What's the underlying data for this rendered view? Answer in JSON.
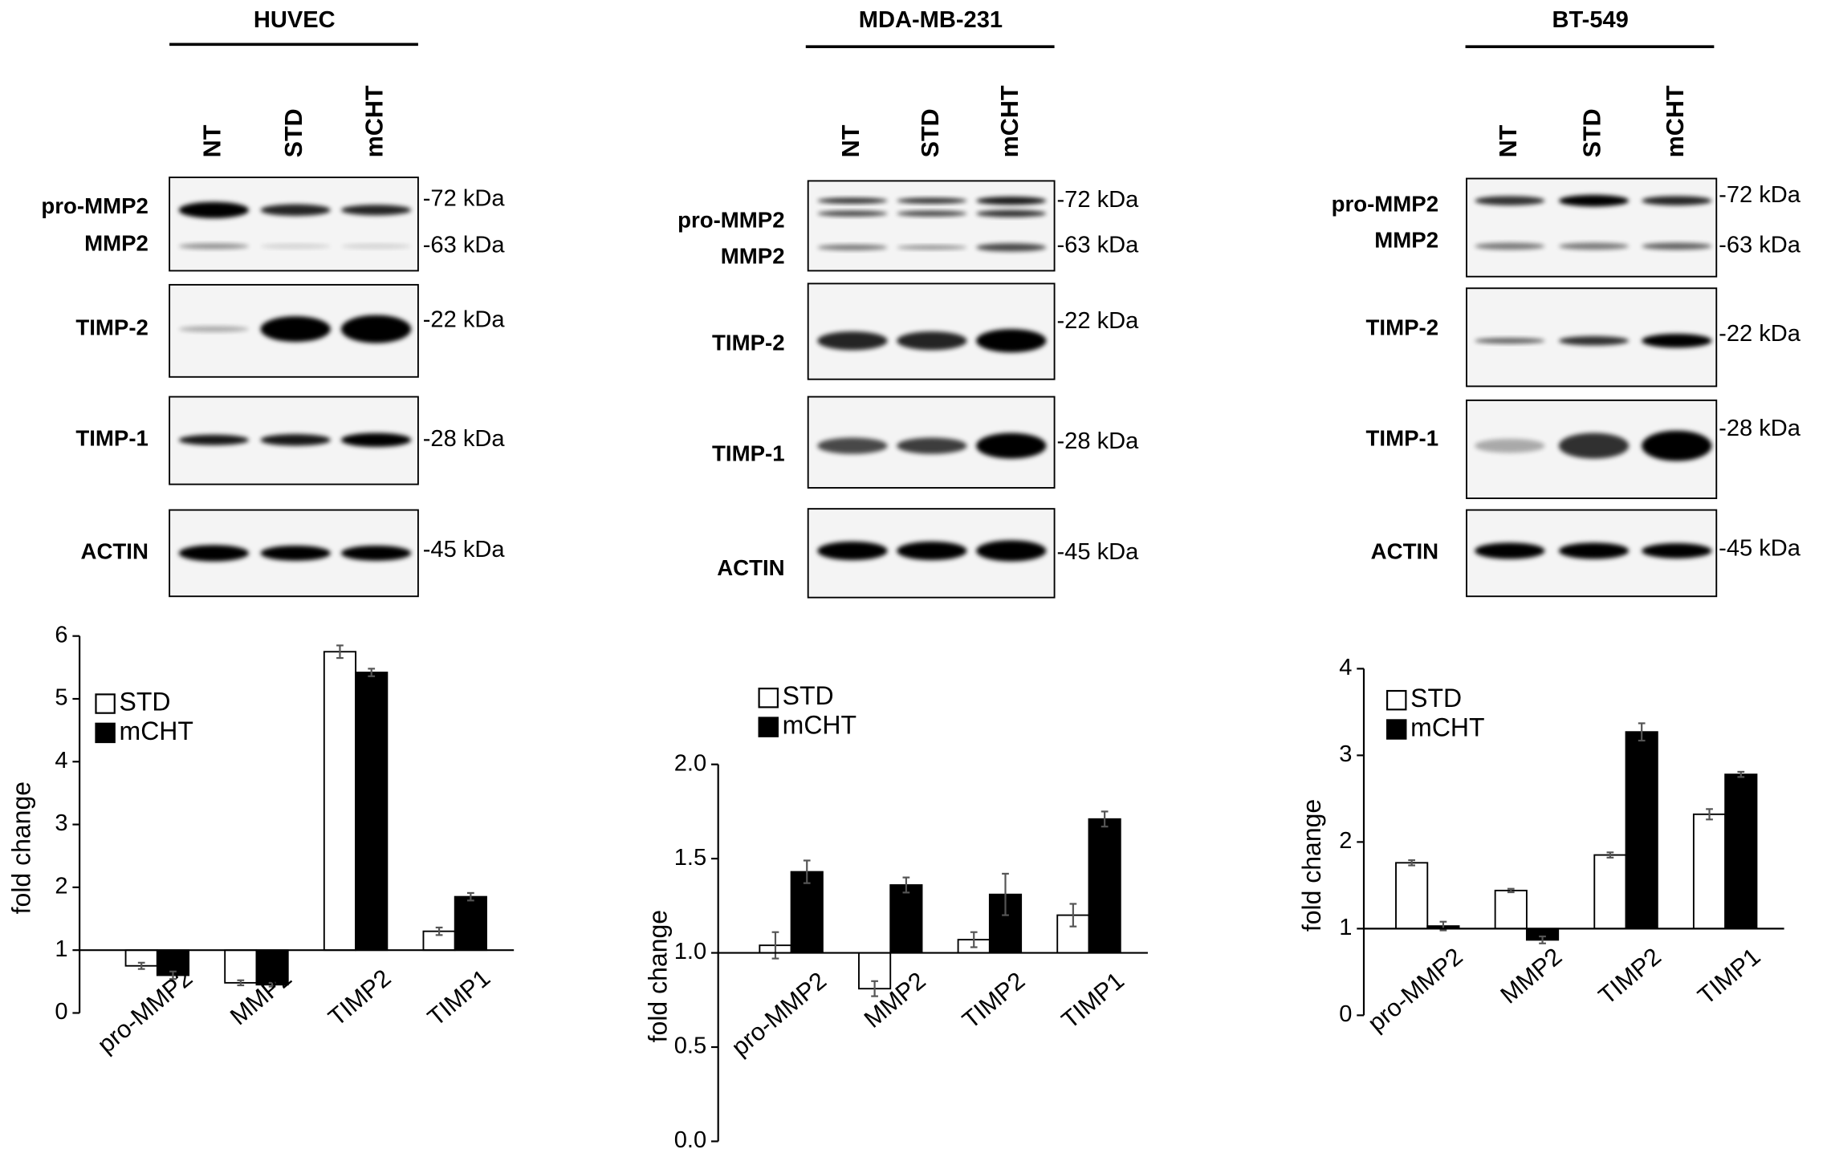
{
  "blots": [
    {
      "title": "HUVEC",
      "lanes": [
        "NT",
        "STD",
        "mCHT"
      ],
      "proteins": [
        "pro-MMP2",
        "MMP2",
        "TIMP-2",
        "TIMP-1",
        "ACTIN"
      ],
      "markers": [
        "-72 kDa",
        "-63 kDa",
        "-22 kDa",
        "-28 kDa",
        "-45 kDa"
      ]
    },
    {
      "title": "MDA-MB-231",
      "lanes": [
        "NT",
        "STD",
        "mCHT"
      ],
      "proteins": [
        "pro-MMP2",
        "MMP2",
        "TIMP-2",
        "TIMP-1",
        "ACTIN"
      ],
      "markers": [
        "-72 kDa",
        "-63 kDa",
        "-22 kDa",
        "-28 kDa",
        "-45 kDa"
      ]
    },
    {
      "title": "BT-549",
      "lanes": [
        "NT",
        "STD",
        "mCHT"
      ],
      "proteins": [
        "pro-MMP2",
        "MMP2",
        "TIMP-2",
        "TIMP-1",
        "ACTIN"
      ],
      "markers": [
        "-72 kDa",
        "-63 kDa",
        "-22 kDa",
        "-28 kDa",
        "-45 kDa"
      ]
    }
  ],
  "chart_data": [
    {
      "type": "bar",
      "y_label": "fold change",
      "categories": [
        "pro-MMP2",
        "MMP2",
        "TIMP2",
        "TIMP1"
      ],
      "series": [
        {
          "name": "STD",
          "color": "#ffffff",
          "values": [
            0.75,
            0.48,
            5.75,
            1.3
          ],
          "errors": [
            0.05,
            0.04,
            0.1,
            0.06
          ]
        },
        {
          "name": "mCHT",
          "color": "#000000",
          "values": [
            0.6,
            0.45,
            5.42,
            1.85
          ],
          "errors": [
            0.06,
            0.03,
            0.06,
            0.06
          ]
        }
      ],
      "ylim": [
        0,
        6
      ],
      "yticks": [
        0,
        1,
        2,
        3,
        4,
        5,
        6
      ],
      "baseline": 1,
      "legend": "upper left"
    },
    {
      "type": "bar",
      "y_label": "fold change",
      "categories": [
        "pro-MMP2",
        "MMP2",
        "TIMP2",
        "TIMP1"
      ],
      "series": [
        {
          "name": "STD",
          "color": "#ffffff",
          "values": [
            1.04,
            0.81,
            1.07,
            1.2
          ],
          "errors": [
            0.07,
            0.04,
            0.04,
            0.06
          ]
        },
        {
          "name": "mCHT",
          "color": "#000000",
          "values": [
            1.43,
            1.36,
            1.31,
            1.71
          ],
          "errors": [
            0.06,
            0.04,
            0.11,
            0.04
          ]
        }
      ],
      "ylim": [
        0,
        2
      ],
      "yticks": [
        {
          "value": 0,
          "label": "0.0"
        },
        0.5,
        {
          "value": 1,
          "label": "1.0"
        },
        1.5,
        {
          "value": 2,
          "label": "2.0"
        }
      ],
      "baseline": 1,
      "legend": "upper left"
    },
    {
      "type": "bar",
      "y_label": "fold change",
      "categories": [
        "pro-MMP2",
        "MMP2",
        "TIMP2",
        "TIMP1"
      ],
      "series": [
        {
          "name": "STD",
          "color": "#ffffff",
          "values": [
            1.76,
            1.44,
            1.85,
            2.32
          ],
          "errors": [
            0.03,
            0.02,
            0.03,
            0.06
          ]
        },
        {
          "name": "mCHT",
          "color": "#000000",
          "values": [
            1.03,
            0.87,
            3.27,
            2.78
          ],
          "errors": [
            0.05,
            0.04,
            0.1,
            0.03
          ]
        }
      ],
      "ylim": [
        0,
        4
      ],
      "yticks": [
        0,
        1,
        2,
        3,
        4
      ],
      "baseline": 1,
      "legend": "upper left"
    }
  ]
}
